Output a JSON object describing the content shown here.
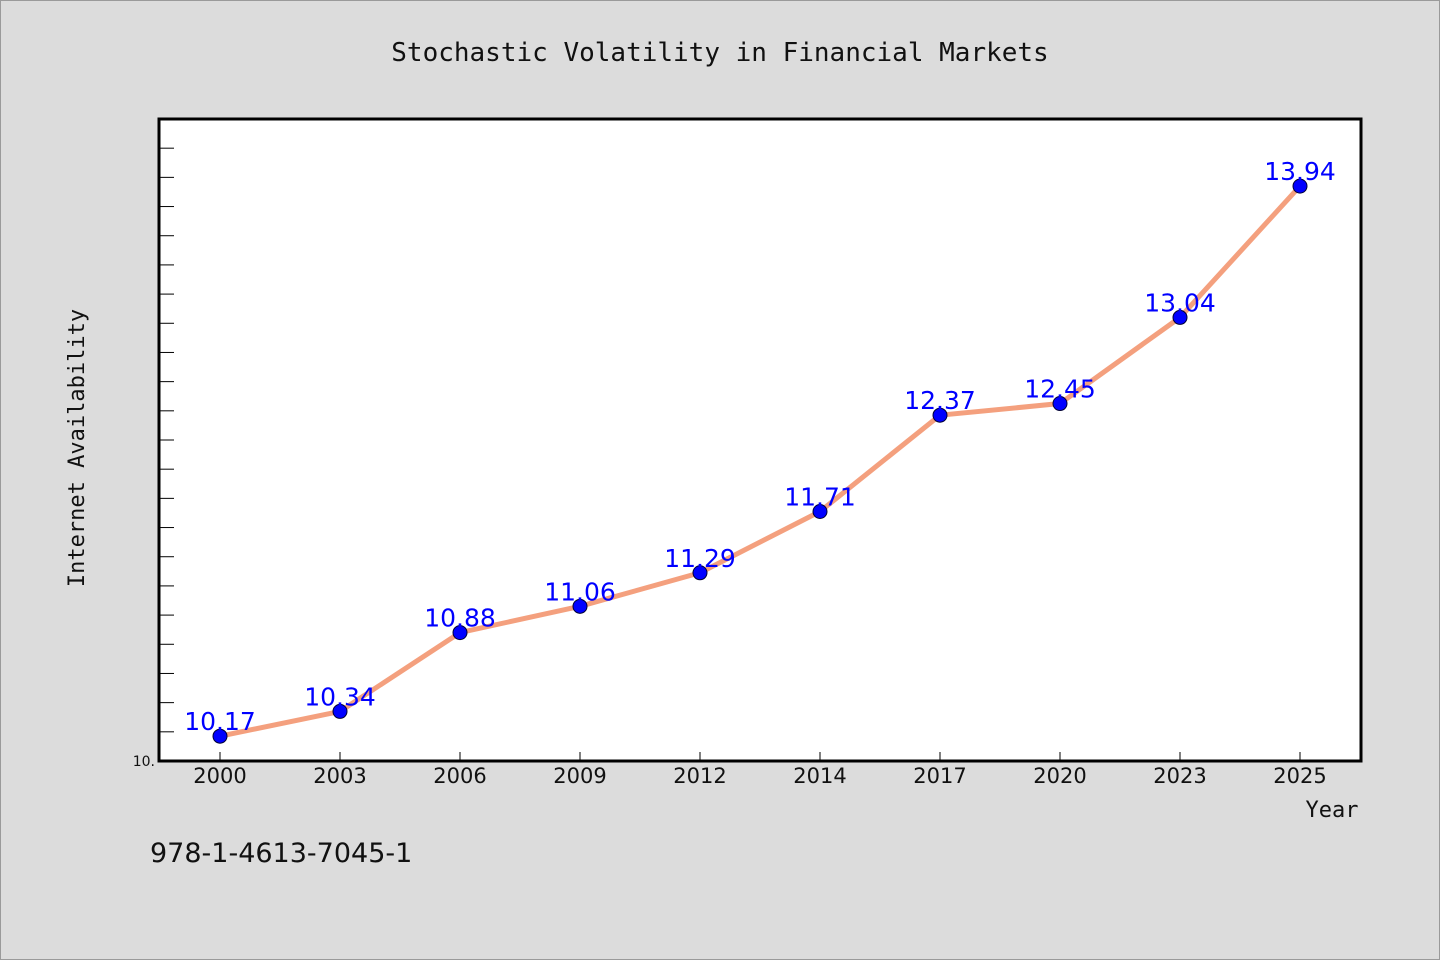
{
  "chart_data": {
    "type": "line",
    "title": "Stochastic Volatility in Financial Markets",
    "xlabel": "Year",
    "ylabel": "Internet Availability",
    "categories": [
      "2000",
      "2003",
      "2006",
      "2009",
      "2012",
      "2014",
      "2017",
      "2020",
      "2023",
      "2025"
    ],
    "series": [
      {
        "values": [
          10.17,
          10.34,
          10.88,
          11.06,
          11.29,
          11.71,
          12.37,
          12.45,
          13.04,
          13.94
        ],
        "data_labels": [
          "10.17",
          "10.34",
          "10.88",
          "11.06",
          "11.29",
          "11.71",
          "12.37",
          "12.45",
          "13.04",
          "13.94"
        ]
      }
    ],
    "ylim": [
      10.0,
      14.4
    ],
    "y_tick_labels": [
      "10."
    ],
    "y_minor_tick_step": 0.2,
    "grid": false,
    "line_color": "#f4a07e",
    "marker_color": "#0000ff",
    "data_label_color": "#0000ff",
    "plot_background": "#ffffff",
    "figure_background": "#dcdcdc"
  },
  "footnote": "978-1-4613-7045-1"
}
